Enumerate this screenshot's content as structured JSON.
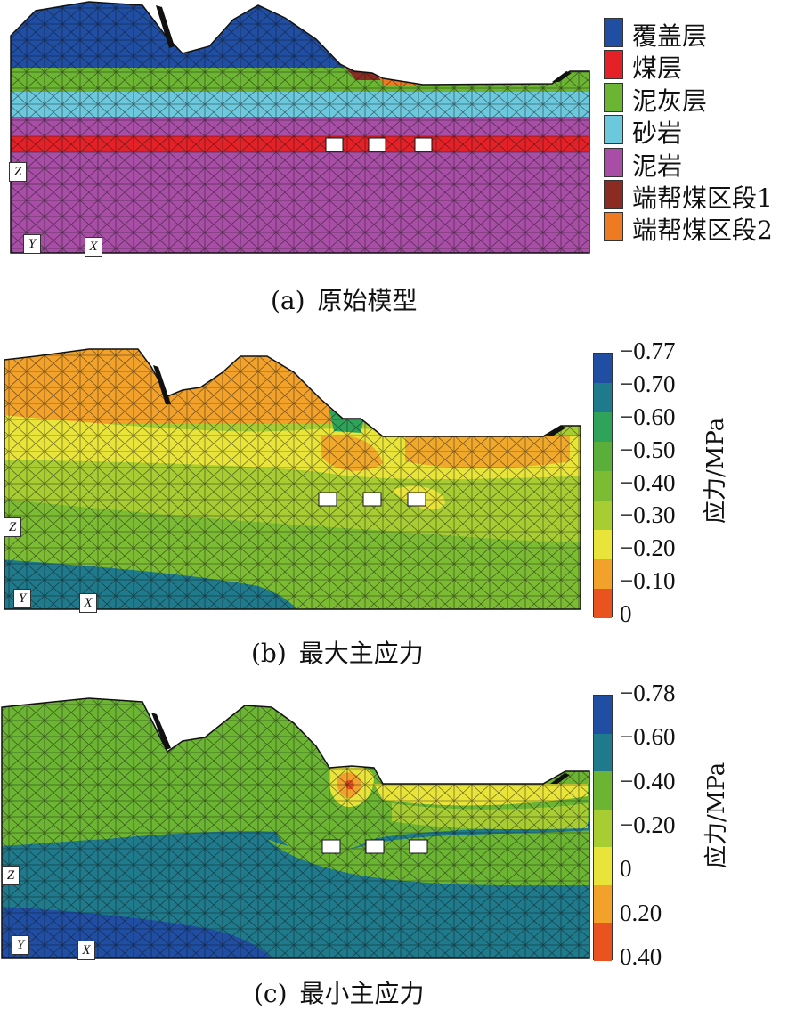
{
  "panel_a": {
    "caption_label": "(a)",
    "caption_text": "原始模型",
    "legend": [
      {
        "label": "覆盖层",
        "color": "#1f4ea3"
      },
      {
        "label": "煤层",
        "color": "#e52128"
      },
      {
        "label": "泥灰层",
        "color": "#6cb533"
      },
      {
        "label": "砂岩",
        "color": "#6cc8dc"
      },
      {
        "label": "泥岩",
        "color": "#a94ea6"
      },
      {
        "label": "端帮煤区段1",
        "color": "#8c2b22"
      },
      {
        "label": "端帮煤区段2",
        "color": "#ee7a22"
      }
    ],
    "axis_tags": {
      "z": "Z",
      "y": "Y",
      "x": "X"
    }
  },
  "panel_b": {
    "caption_label": "(b)",
    "caption_text": "最大主应力",
    "colorbar_title": "应力/MPa",
    "ticks": [
      "−0.77",
      "−0.70",
      "−0.60",
      "−0.50",
      "−0.40",
      "−0.30",
      "−0.20",
      "−0.10",
      "0"
    ],
    "colors": [
      "#1f4ea3",
      "#1f7a8c",
      "#2fa35a",
      "#5aae3a",
      "#7cbc33",
      "#a7cd33",
      "#e8e43a",
      "#f2a22a",
      "#e8531f"
    ],
    "axis_tags": {
      "z": "Z",
      "y": "Y",
      "x": "X"
    }
  },
  "panel_c": {
    "caption_label": "(c)",
    "caption_text": "最小主应力",
    "colorbar_title": "应力/MPa",
    "ticks": [
      "−0.78",
      "−0.60",
      "−0.40",
      "−0.20",
      "0",
      "0.20",
      "0.40"
    ],
    "colors": [
      "#1f4ea3",
      "#1f7a8c",
      "#6cb533",
      "#a7cd33",
      "#e8e43a",
      "#f2a22a",
      "#e8531f"
    ],
    "axis_tags": {
      "z": "Z",
      "y": "Y",
      "x": "X"
    }
  }
}
